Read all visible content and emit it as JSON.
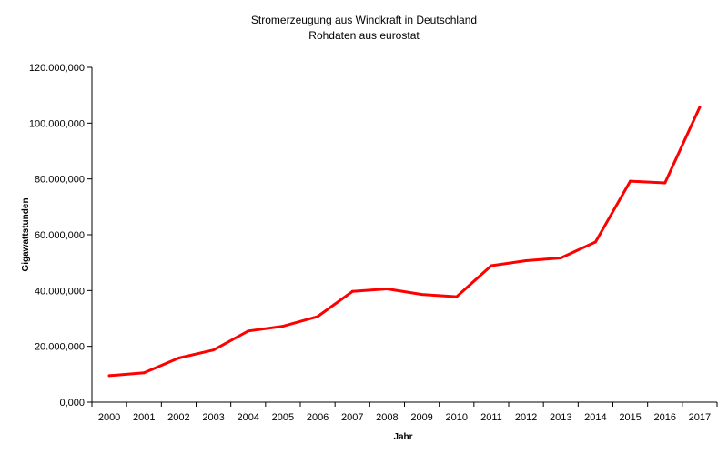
{
  "chart_data": {
    "type": "line",
    "title": "Stromerzeugung aus Windkraft in Deutschland",
    "subtitle": "Rohdaten aus eurostat",
    "xlabel": "Jahr",
    "ylabel": "Gigawattstunden",
    "categories": [
      "2000",
      "2001",
      "2002",
      "2003",
      "2004",
      "2005",
      "2006",
      "2007",
      "2008",
      "2009",
      "2010",
      "2011",
      "2012",
      "2013",
      "2014",
      "2015",
      "2016",
      "2017"
    ],
    "series": [
      {
        "name": "Stromerzeugung aus Windkraft",
        "color": "#ff0000",
        "values": [
          9500000,
          10500000,
          15800000,
          18700000,
          25500000,
          27200000,
          30700000,
          39700000,
          40600000,
          38600000,
          37800000,
          48900000,
          50700000,
          51700000,
          57400000,
          79200000,
          78600000,
          105700000
        ]
      }
    ],
    "ylim": [
      0,
      120000000
    ],
    "yticks": [
      0,
      20000000,
      40000000,
      60000000,
      80000000,
      100000000,
      120000000
    ],
    "ytick_labels": [
      "0,000",
      "20.000,000",
      "40.000,000",
      "60.000,000",
      "80.000,000",
      "100.000,000",
      "120.000,000"
    ],
    "grid": false,
    "legend": "none"
  }
}
